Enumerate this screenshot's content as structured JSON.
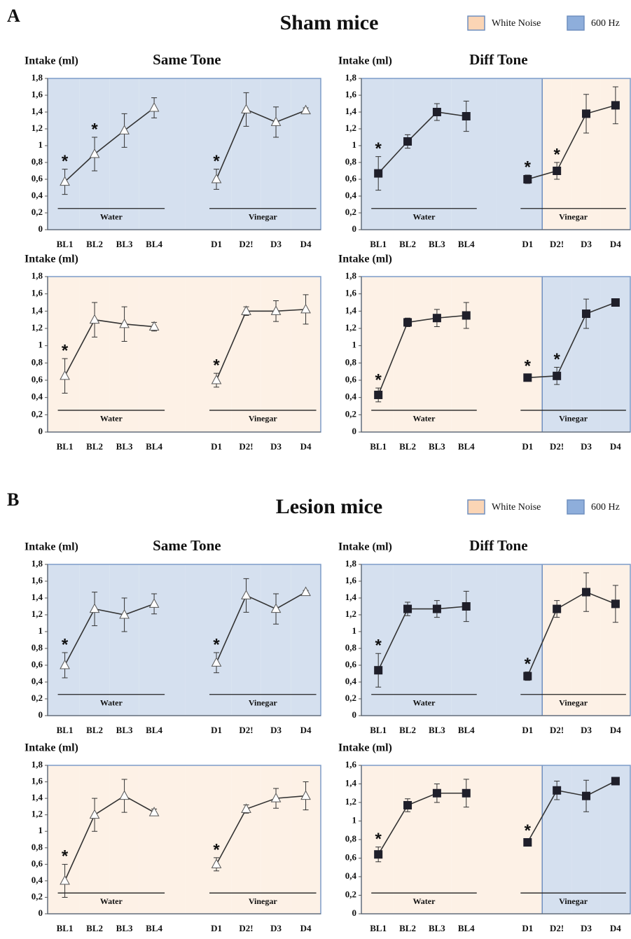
{
  "sections": [
    {
      "label": "A",
      "title": "Sham mice"
    },
    {
      "label": "B",
      "title": "Lesion mice"
    }
  ],
  "legend": [
    {
      "name": "White Noise",
      "color": "#fbd5b5",
      "background": "#fdf1e6"
    },
    {
      "name": "600 Hz",
      "color": "#8eaedb",
      "background": "#d5e0ef"
    }
  ],
  "chart_data": [
    {
      "type": "line",
      "y_label": "Intake (ml)",
      "title": "Same Tone",
      "marker": "triangle",
      "ylim": [
        0,
        1.8
      ],
      "yticks": [
        0,
        {
          "value": 0.2,
          "label": "0,2"
        },
        {
          "value": 0.4,
          "label": "0,4"
        },
        {
          "value": 0.6,
          "label": "0,6"
        },
        {
          "value": 0.8,
          "label": "0,8"
        },
        1,
        {
          "value": 1.2,
          "label": "1,2"
        },
        {
          "value": 1.4,
          "label": "1,4"
        },
        {
          "value": 1.6,
          "label": "1,6"
        },
        {
          "value": 1.8,
          "label": "1,8"
        }
      ],
      "groups": [
        {
          "label": "Water",
          "categories": [
            "BL1",
            "BL2",
            "BL3",
            "BL4"
          ],
          "values": [
            0.57,
            0.9,
            1.18,
            1.45
          ],
          "errors": [
            0.15,
            0.2,
            0.2,
            0.12
          ],
          "significance": [
            "*",
            "*",
            null,
            null
          ],
          "tones": [
            "600 Hz",
            "600 Hz",
            "600 Hz",
            "600 Hz"
          ]
        },
        {
          "label": "Vinegar",
          "categories": [
            "D1",
            "D2!",
            "D3",
            "D4"
          ],
          "values": [
            0.6,
            1.43,
            1.28,
            1.42
          ],
          "errors": [
            0.12,
            0.2,
            0.18,
            0.03
          ],
          "significance": [
            "*",
            null,
            null,
            null
          ],
          "tones": [
            "600 Hz",
            "600 Hz",
            "600 Hz",
            "600 Hz"
          ]
        }
      ]
    },
    {
      "type": "line",
      "y_label": "Intake (ml)",
      "title": "Diff Tone",
      "marker": "square",
      "ylim": [
        0,
        1.8
      ],
      "yticks": [
        0,
        {
          "value": 0.2,
          "label": "0,2"
        },
        {
          "value": 0.4,
          "label": "0,4"
        },
        {
          "value": 0.6,
          "label": "0,6"
        },
        {
          "value": 0.8,
          "label": "0,8"
        },
        1,
        {
          "value": 1.2,
          "label": "1,2"
        },
        {
          "value": 1.4,
          "label": "1,4"
        },
        {
          "value": 1.6,
          "label": "1,6"
        },
        {
          "value": 1.8,
          "label": "1,8"
        }
      ],
      "groups": [
        {
          "label": "Water",
          "categories": [
            "BL1",
            "BL2",
            "BL3",
            "BL4"
          ],
          "values": [
            0.67,
            1.05,
            1.4,
            1.35
          ],
          "errors": [
            0.2,
            0.08,
            0.1,
            0.18
          ],
          "significance": [
            "*",
            null,
            null,
            null
          ],
          "tones": [
            "600 Hz",
            "600 Hz",
            "600 Hz",
            "600 Hz"
          ]
        },
        {
          "label": "Vinegar",
          "categories": [
            "D1",
            "D2!",
            "D3",
            "D4"
          ],
          "values": [
            0.6,
            0.7,
            1.38,
            1.48
          ],
          "errors": [
            0.05,
            0.1,
            0.23,
            0.22
          ],
          "significance": [
            "*",
            "*",
            null,
            null
          ],
          "tones": [
            "600 Hz",
            "White Noise",
            "White Noise",
            "White Noise"
          ]
        }
      ]
    },
    {
      "type": "line",
      "y_label": "Intake (ml)",
      "marker": "triangle",
      "ylim": [
        0,
        1.8
      ],
      "yticks": [
        0,
        {
          "value": 0.2,
          "label": "0,2"
        },
        {
          "value": 0.4,
          "label": "0,4"
        },
        {
          "value": 0.6,
          "label": "0,6"
        },
        {
          "value": 0.8,
          "label": "0,8"
        },
        1,
        {
          "value": 1.2,
          "label": "1,2"
        },
        {
          "value": 1.4,
          "label": "1,4"
        },
        {
          "value": 1.6,
          "label": "1,6"
        },
        {
          "value": 1.8,
          "label": "1,8"
        }
      ],
      "groups": [
        {
          "label": "Water",
          "categories": [
            "BL1",
            "BL2",
            "BL3",
            "BL4"
          ],
          "values": [
            0.65,
            1.3,
            1.25,
            1.22
          ],
          "errors": [
            0.2,
            0.2,
            0.2,
            0.05
          ],
          "significance": [
            "*",
            null,
            null,
            null
          ],
          "tones": [
            "White Noise",
            "White Noise",
            "White Noise",
            "White Noise"
          ]
        },
        {
          "label": "Vinegar",
          "categories": [
            "D1",
            "D2!",
            "D3",
            "D4"
          ],
          "values": [
            0.6,
            1.4,
            1.4,
            1.42
          ],
          "errors": [
            0.08,
            0.05,
            0.12,
            0.17
          ],
          "significance": [
            "*",
            null,
            null,
            null
          ],
          "tones": [
            "White Noise",
            "White Noise",
            "White Noise",
            "White Noise"
          ]
        }
      ]
    },
    {
      "type": "line",
      "y_label": "Intake (ml)",
      "marker": "square",
      "ylim": [
        0,
        1.8
      ],
      "yticks": [
        0,
        {
          "value": 0.2,
          "label": "0,2"
        },
        {
          "value": 0.4,
          "label": "0,4"
        },
        {
          "value": 0.6,
          "label": "0,6"
        },
        {
          "value": 0.8,
          "label": "0,8"
        },
        1,
        {
          "value": 1.2,
          "label": "1,2"
        },
        {
          "value": 1.4,
          "label": "1,4"
        },
        {
          "value": 1.6,
          "label": "1,6"
        },
        {
          "value": 1.8,
          "label": "1,8"
        }
      ],
      "groups": [
        {
          "label": "Water",
          "categories": [
            "BL1",
            "BL2",
            "BL3",
            "BL4"
          ],
          "values": [
            0.43,
            1.27,
            1.32,
            1.35
          ],
          "errors": [
            0.08,
            0.05,
            0.1,
            0.15
          ],
          "significance": [
            "*",
            null,
            null,
            null
          ],
          "tones": [
            "White Noise",
            "White Noise",
            "White Noise",
            "White Noise"
          ]
        },
        {
          "label": "Vinegar",
          "categories": [
            "D1",
            "D2!",
            "D3",
            "D4"
          ],
          "values": [
            0.63,
            0.65,
            1.37,
            1.5
          ],
          "errors": [
            0.04,
            0.1,
            0.17,
            0.02
          ],
          "significance": [
            "*",
            "*",
            null,
            null
          ],
          "tones": [
            "White Noise",
            "600 Hz",
            "600 Hz",
            "600 Hz"
          ]
        }
      ]
    },
    {
      "type": "line",
      "y_label": "Intake (ml)",
      "title": "Same Tone",
      "marker": "triangle",
      "ylim": [
        0,
        1.8
      ],
      "yticks": [
        0,
        {
          "value": 0.2,
          "label": "0,2"
        },
        {
          "value": 0.4,
          "label": "0,4"
        },
        {
          "value": 0.6,
          "label": "0,6"
        },
        {
          "value": 0.8,
          "label": "0,8"
        },
        1,
        {
          "value": 1.2,
          "label": "1,2"
        },
        {
          "value": 1.4,
          "label": "1,4"
        },
        {
          "value": 1.6,
          "label": "1,6"
        },
        {
          "value": 1.8,
          "label": "1,8"
        }
      ],
      "groups": [
        {
          "label": "Water",
          "categories": [
            "BL1",
            "BL2",
            "BL3",
            "BL4"
          ],
          "values": [
            0.6,
            1.27,
            1.2,
            1.33
          ],
          "errors": [
            0.15,
            0.2,
            0.2,
            0.12
          ],
          "significance": [
            "*",
            null,
            null,
            null
          ],
          "tones": [
            "600 Hz",
            "600 Hz",
            "600 Hz",
            "600 Hz"
          ]
        },
        {
          "label": "Vinegar",
          "categories": [
            "D1",
            "D2!",
            "D3",
            "D4"
          ],
          "values": [
            0.63,
            1.43,
            1.27,
            1.47
          ],
          "errors": [
            0.12,
            0.2,
            0.18,
            0.02
          ],
          "significance": [
            "*",
            null,
            null,
            null
          ],
          "tones": [
            "600 Hz",
            "600 Hz",
            "600 Hz",
            "600 Hz"
          ]
        }
      ]
    },
    {
      "type": "line",
      "y_label": "Intake (ml)",
      "title": "Diff Tone",
      "marker": "square",
      "ylim": [
        0,
        1.8
      ],
      "yticks": [
        0,
        {
          "value": 0.2,
          "label": "0,2"
        },
        {
          "value": 0.4,
          "label": "0,4"
        },
        {
          "value": 0.6,
          "label": "0,6"
        },
        {
          "value": 0.8,
          "label": "0,8"
        },
        1,
        {
          "value": 1.2,
          "label": "1,2"
        },
        {
          "value": 1.4,
          "label": "1,4"
        },
        {
          "value": 1.6,
          "label": "1,6"
        },
        {
          "value": 1.8,
          "label": "1,8"
        }
      ],
      "groups": [
        {
          "label": "Water",
          "categories": [
            "BL1",
            "BL2",
            "BL3",
            "BL4"
          ],
          "values": [
            0.54,
            1.27,
            1.27,
            1.3
          ],
          "errors": [
            0.2,
            0.08,
            0.1,
            0.18
          ],
          "significance": [
            "*",
            null,
            null,
            null
          ],
          "tones": [
            "600 Hz",
            "600 Hz",
            "600 Hz",
            "600 Hz"
          ]
        },
        {
          "label": "Vinegar",
          "categories": [
            "D1",
            "D2!",
            "D3",
            "D4"
          ],
          "values": [
            0.47,
            1.27,
            1.47,
            1.33
          ],
          "errors": [
            0.05,
            0.1,
            0.23,
            0.22
          ],
          "significance": [
            "*",
            null,
            null,
            null
          ],
          "tones": [
            "600 Hz",
            "White Noise",
            "White Noise",
            "White Noise"
          ]
        }
      ]
    },
    {
      "type": "line",
      "y_label": "Intake (ml)",
      "marker": "triangle",
      "ylim": [
        0,
        1.8
      ],
      "yticks": [
        0,
        {
          "value": 0.2,
          "label": "0,2"
        },
        {
          "value": 0.4,
          "label": "0,4"
        },
        {
          "value": 0.6,
          "label": "0,6"
        },
        {
          "value": 0.8,
          "label": "0,8"
        },
        1,
        {
          "value": 1.2,
          "label": "1,2"
        },
        {
          "value": 1.4,
          "label": "1,4"
        },
        {
          "value": 1.6,
          "label": "1,6"
        },
        {
          "value": 1.8,
          "label": "1,8"
        }
      ],
      "groups": [
        {
          "label": "Water",
          "categories": [
            "BL1",
            "BL2",
            "BL3",
            "BL4"
          ],
          "values": [
            0.4,
            1.2,
            1.43,
            1.23
          ],
          "errors": [
            0.2,
            0.2,
            0.2,
            0.04
          ],
          "significance": [
            "*",
            null,
            null,
            null
          ],
          "tones": [
            "White Noise",
            "White Noise",
            "White Noise",
            "White Noise"
          ]
        },
        {
          "label": "Vinegar",
          "categories": [
            "D1",
            "D2!",
            "D3",
            "D4"
          ],
          "values": [
            0.6,
            1.27,
            1.4,
            1.43
          ],
          "errors": [
            0.08,
            0.05,
            0.12,
            0.17
          ],
          "significance": [
            "*",
            null,
            null,
            null
          ],
          "tones": [
            "White Noise",
            "White Noise",
            "White Noise",
            "White Noise"
          ]
        }
      ]
    },
    {
      "type": "line",
      "y_label": "Intake (ml)",
      "marker": "square",
      "ylim": [
        0,
        1.6
      ],
      "yticks": [
        0,
        {
          "value": 0.2,
          "label": "0,2"
        },
        {
          "value": 0.4,
          "label": "0,4"
        },
        {
          "value": 0.6,
          "label": "0,6"
        },
        {
          "value": 0.8,
          "label": "0,8"
        },
        1,
        {
          "value": 1.2,
          "label": "1,2"
        },
        {
          "value": 1.4,
          "label": "1,4"
        },
        {
          "value": 1.6,
          "label": "1,6"
        }
      ],
      "groups": [
        {
          "label": "Water",
          "categories": [
            "BL1",
            "BL2",
            "BL3",
            "BL4"
          ],
          "values": [
            0.64,
            1.17,
            1.3,
            1.3
          ],
          "errors": [
            0.08,
            0.07,
            0.1,
            0.15
          ],
          "significance": [
            "*",
            null,
            null,
            null
          ],
          "tones": [
            "White Noise",
            "White Noise",
            "White Noise",
            "White Noise"
          ]
        },
        {
          "label": "Vinegar",
          "categories": [
            "D1",
            "D2!",
            "D3",
            "D4"
          ],
          "values": [
            0.77,
            1.33,
            1.27,
            1.43
          ],
          "errors": [
            0.04,
            0.1,
            0.17,
            0.02
          ],
          "significance": [
            "*",
            null,
            null,
            null
          ],
          "tones": [
            "White Noise",
            "600 Hz",
            "600 Hz",
            "600 Hz"
          ]
        }
      ]
    }
  ]
}
